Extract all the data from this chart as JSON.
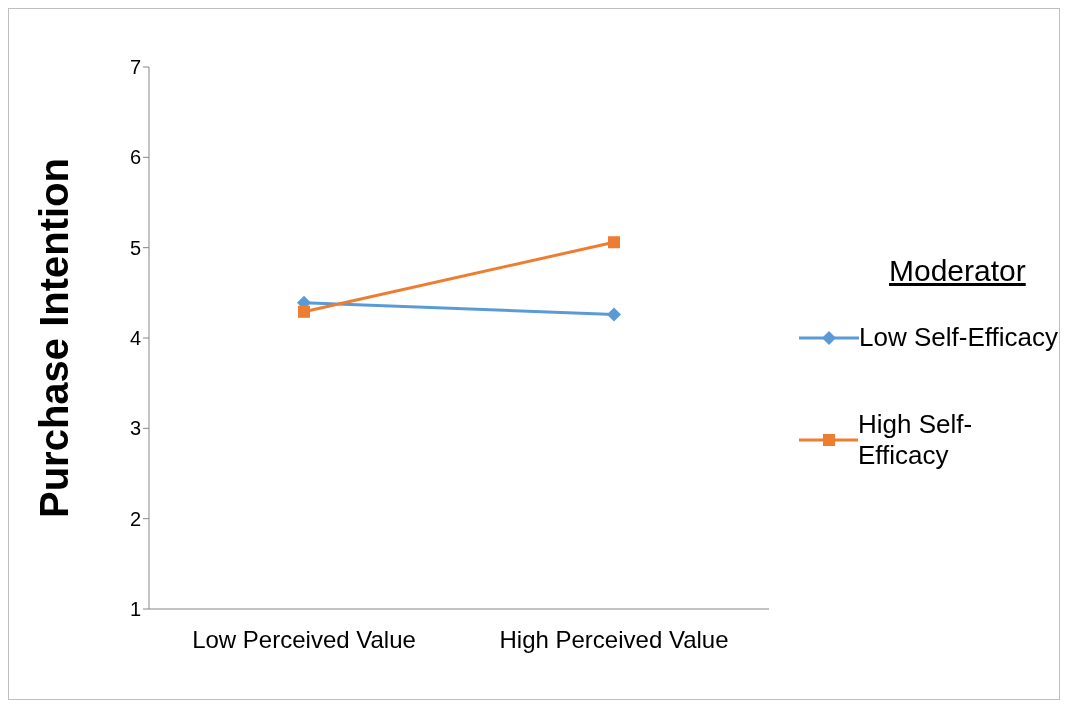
{
  "chart_data": {
    "type": "line",
    "ylabel": "Purchase Intention",
    "legend_title": "Moderator",
    "categories": [
      "Low Perceived Value",
      "High Perceived Value"
    ],
    "ylim": [
      1,
      7
    ],
    "yticks": [
      1,
      2,
      3,
      4,
      5,
      6,
      7
    ],
    "grid": false,
    "legend": "right",
    "line_style": "solid",
    "series": [
      {
        "name": "Low Self-Efficacy",
        "color": "#5b9bd5",
        "marker": "diamond",
        "values": [
          4.39,
          4.26
        ]
      },
      {
        "name": "High Self-Efficacy",
        "color": "#ed7d31",
        "marker": "square",
        "values": [
          4.29,
          5.06
        ]
      }
    ]
  }
}
